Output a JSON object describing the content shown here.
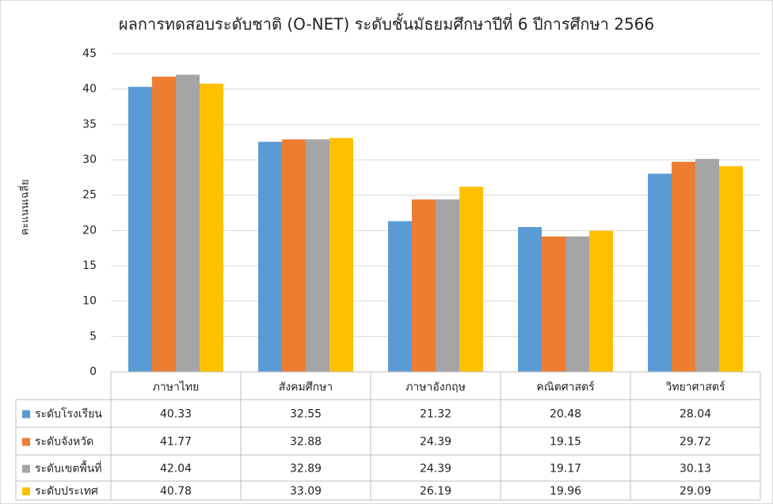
{
  "chart_data": {
    "type": "bar",
    "title": "ผลการทดสอบระดับชาติ (O-NET)  ระดับชั้นมัธยมศึกษาปีที่ 6 ปีการศึกษา 2566",
    "y_label": "คะแนนเฉลี่ย",
    "categories": [
      "ภาษาไทย",
      "สังคมศึกษา",
      "ภาษาอังกฤษ",
      "คณิตศาสตร์",
      "วิทยาศาสตร์"
    ],
    "series": [
      {
        "name": "ระดับโรงเรียน",
        "color": "#5b9bd5",
        "values": [
          40.33,
          32.55,
          21.32,
          20.48,
          28.04
        ]
      },
      {
        "name": "ระดับจังหวัด",
        "color": "#ed7d31",
        "values": [
          41.77,
          32.88,
          24.39,
          19.15,
          29.72
        ]
      },
      {
        "name": "ระดับเขตพื้นที่",
        "color": "#a5a5a5",
        "values": [
          42.04,
          32.89,
          24.39,
          19.17,
          30.13
        ]
      },
      {
        "name": "ระดับประเทศ",
        "color": "#ffc000",
        "values": [
          40.78,
          33.09,
          26.19,
          19.96,
          29.09
        ]
      }
    ],
    "ylim": [
      0,
      45
    ],
    "yticks": [
      0,
      5,
      10,
      15,
      20,
      25,
      30,
      35,
      40,
      45
    ],
    "grid": true
  }
}
